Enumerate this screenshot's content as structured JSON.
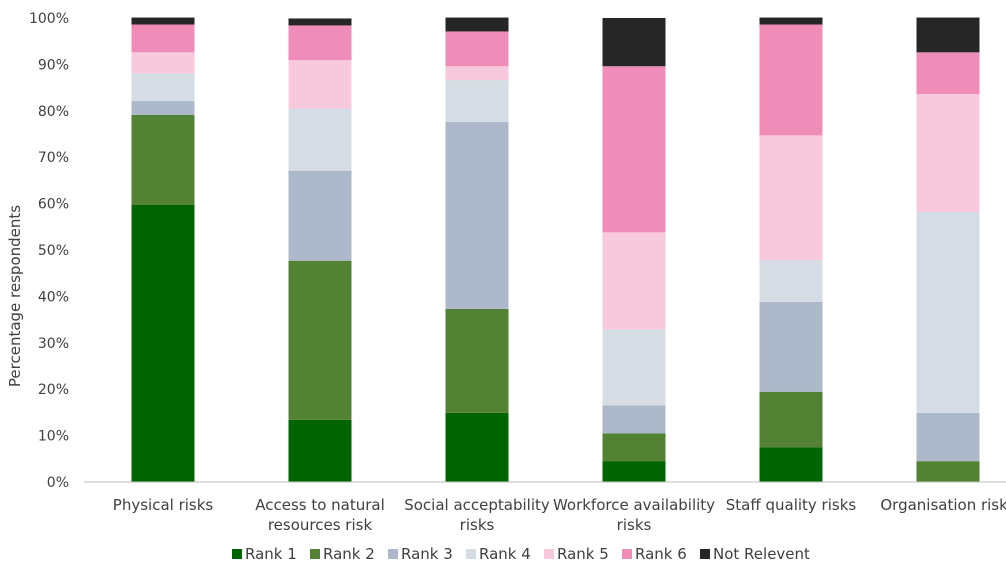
{
  "chart_data": {
    "type": "bar",
    "stacked": true,
    "percent": true,
    "ylabel": "Percentage respondents",
    "xlabel": "",
    "ylim": [
      0,
      100
    ],
    "yticks": [
      "0%",
      "10%",
      "20%",
      "30%",
      "40%",
      "50%",
      "60%",
      "70%",
      "80%",
      "90%",
      "100%"
    ],
    "categories": [
      [
        "Physical risks"
      ],
      [
        "Access to natural",
        "resources risk"
      ],
      [
        "Social acceptability",
        "risks"
      ],
      [
        "Workforce availability",
        "risks"
      ],
      [
        "Staff quality risks"
      ],
      [
        "Organisation risks"
      ]
    ],
    "series": [
      {
        "name": "Rank 1",
        "color": "#006400",
        "values": [
          59.7,
          13.4,
          14.9,
          4.5,
          7.5,
          0
        ]
      },
      {
        "name": "Rank 2",
        "color": "#548235",
        "values": [
          19.4,
          34.3,
          22.4,
          6.0,
          11.9,
          4.5
        ]
      },
      {
        "name": "Rank 3",
        "color": "#adb9ca",
        "values": [
          3.0,
          19.4,
          40.3,
          6.0,
          19.4,
          10.4
        ]
      },
      {
        "name": "Rank 4",
        "color": "#d6dce4",
        "values": [
          6.0,
          13.4,
          9.0,
          16.4,
          9.0,
          43.3
        ]
      },
      {
        "name": "Rank 5",
        "color": "#f8c8dc",
        "values": [
          4.5,
          10.4,
          3.0,
          20.9,
          26.9,
          25.4
        ]
      },
      {
        "name": "Rank 6",
        "color": "#f08cb8",
        "values": [
          6.0,
          7.5,
          7.5,
          35.8,
          23.9,
          9.0
        ]
      },
      {
        "name": "Not Relevent",
        "color": "#262626",
        "values": [
          1.5,
          1.5,
          3.0,
          10.4,
          1.5,
          7.5
        ]
      }
    ],
    "legend_position": "bottom",
    "grid": false
  }
}
